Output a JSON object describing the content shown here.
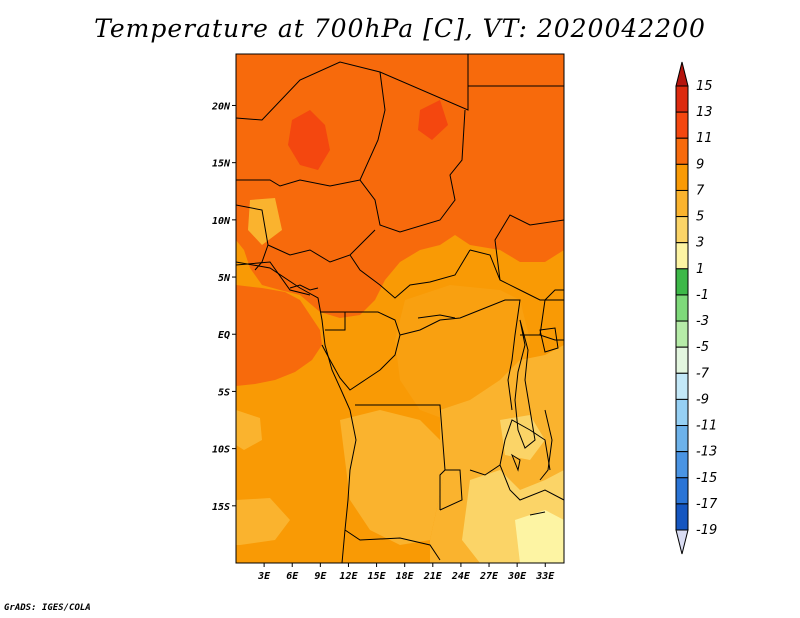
{
  "title": "Temperature at 700hPa [C], VT: 2020042200",
  "credit": "GrADS: IGES/COLA",
  "map": {
    "lat_labels": [
      {
        "text": "20N",
        "lat": 20
      },
      {
        "text": "15N",
        "lat": 15
      },
      {
        "text": "10N",
        "lat": 10
      },
      {
        "text": "5N",
        "lat": 5
      },
      {
        "text": "EQ",
        "lat": 0
      },
      {
        "text": "5S",
        "lat": -5
      },
      {
        "text": "10S",
        "lat": -10
      },
      {
        "text": "15S",
        "lat": -15
      }
    ],
    "lon_labels": [
      {
        "text": "3E",
        "lon": 3
      },
      {
        "text": "6E",
        "lon": 6
      },
      {
        "text": "9E",
        "lon": 9
      },
      {
        "text": "12E",
        "lon": 12
      },
      {
        "text": "15E",
        "lon": 15
      },
      {
        "text": "18E",
        "lon": 18
      },
      {
        "text": "21E",
        "lon": 21
      },
      {
        "text": "24E",
        "lon": 24
      },
      {
        "text": "27E",
        "lon": 27
      },
      {
        "text": "30E",
        "lon": 30
      },
      {
        "text": "33E",
        "lon": 33
      }
    ],
    "lon_range": [
      0,
      35
    ],
    "lat_range": [
      -20,
      24.5
    ]
  },
  "colorbar": {
    "levels": [
      {
        "label": "15",
        "color": "#dd2a0e"
      },
      {
        "label": "13",
        "color": "#f4470f"
      },
      {
        "label": "11",
        "color": "#f76a0c"
      },
      {
        "label": "9",
        "color": "#f99a05"
      },
      {
        "label": "7",
        "color": "#fab32e"
      },
      {
        "label": "5",
        "color": "#fbd467"
      },
      {
        "label": "3",
        "color": "#fdf4a3"
      },
      {
        "label": "1",
        "color": "#3db848"
      },
      {
        "label": "-1",
        "color": "#7ed97a"
      },
      {
        "label": "-3",
        "color": "#b6eca8"
      },
      {
        "label": "-5",
        "color": "#e3f6df"
      },
      {
        "label": "-7",
        "color": "#c3e8f8"
      },
      {
        "label": "-9",
        "color": "#96d0f4"
      },
      {
        "label": "-11",
        "color": "#6db2ea"
      },
      {
        "label": "-13",
        "color": "#4a94e3"
      },
      {
        "label": "-15",
        "color": "#2a74d6"
      },
      {
        "label": "-17",
        "color": "#1556c0"
      },
      {
        "label": "-19",
        "color": "#0b3a9c"
      }
    ],
    "top_arrow_color": "#b5140d",
    "bottom_arrow_color": "#d9dcf2",
    "bottom_fill_color": "#0d1b6e"
  }
}
